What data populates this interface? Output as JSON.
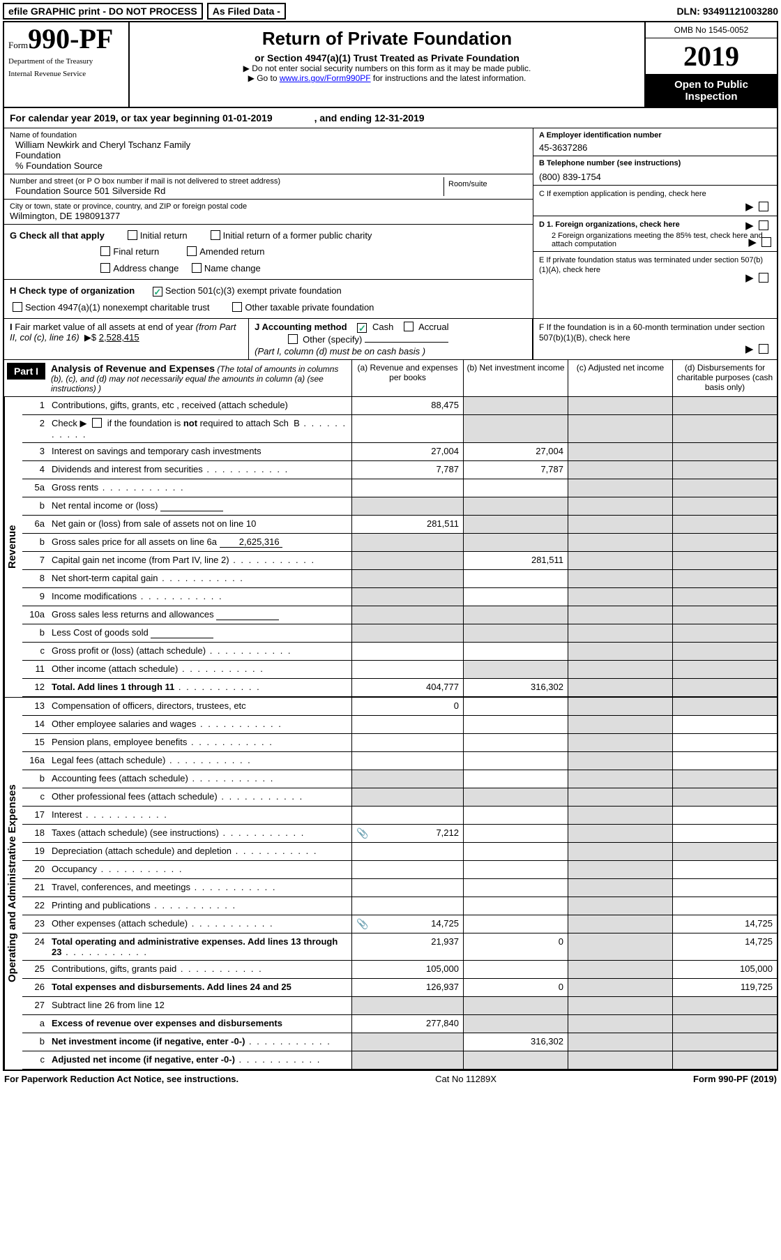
{
  "topbar": {
    "efile": "efile GRAPHIC print - DO NOT PROCESS",
    "asfiled": "As Filed Data -",
    "dln_label": "DLN:",
    "dln": "93491121003280"
  },
  "header": {
    "form_word": "Form",
    "form_no": "990-PF",
    "dept1": "Department of the Treasury",
    "dept2": "Internal Revenue Service",
    "title": "Return of Private Foundation",
    "subtitle": "or Section 4947(a)(1) Trust Treated as Private Foundation",
    "note1": "▶ Do not enter social security numbers on this form as it may be made public.",
    "note2_a": "▶ Go to ",
    "note2_link": "www.irs.gov/Form990PF",
    "note2_b": " for instructions and the latest information.",
    "omb": "OMB No 1545-0052",
    "year": "2019",
    "open": "Open to Public Inspection"
  },
  "calyear": {
    "a": "For calendar year 2019, or tax year beginning 01-01-2019",
    "b": ", and ending 12-31-2019"
  },
  "info": {
    "name_label": "Name of foundation",
    "name1": "William Newkirk and Cheryl Tschanz Family",
    "name2": "Foundation",
    "name3": "% Foundation Source",
    "addr_label": "Number and street (or P O  box number if mail is not delivered to street address)",
    "addr": "Foundation Source 501 Silverside Rd",
    "room_label": "Room/suite",
    "city_label": "City or town, state or province, country, and ZIP or foreign postal code",
    "city": "Wilmington, DE  198091377",
    "ein_label": "A Employer identification number",
    "ein": "45-3637286",
    "tel_label": "B Telephone number (see instructions)",
    "tel": "(800) 839-1754",
    "c_label": "C  If exemption application is pending, check here",
    "d1": "D 1. Foreign organizations, check here",
    "d2": "2  Foreign organizations meeting the 85% test, check here and attach computation",
    "e": "E  If private foundation status was terminated under section 507(b)(1)(A), check here",
    "f": "F  If the foundation is in a 60-month termination under section 507(b)(1)(B), check here"
  },
  "checks": {
    "g": "G Check all that apply",
    "g1": "Initial return",
    "g2": "Initial return of a former public charity",
    "g3": "Final return",
    "g4": "Amended return",
    "g5": "Address change",
    "g6": "Name change",
    "h": "H Check type of organization",
    "h1": "Section 501(c)(3) exempt private foundation",
    "h2": "Section 4947(a)(1) nonexempt charitable trust",
    "h3": "Other taxable private foundation",
    "i": "I Fair market value of all assets at end of year (from Part II, col  (c), line 16)  ▶$ ",
    "i_val": "2,528,415",
    "j": "J Accounting method",
    "j1": "Cash",
    "j2": "Accrual",
    "j3": "Other (specify)",
    "j_note": "(Part I, column (d) must be on cash basis )"
  },
  "part1": {
    "tag": "Part I",
    "title": "Analysis of Revenue and Expenses",
    "note": " (The total of amounts in columns (b), (c), and (d) may not necessarily equal the amounts in column (a) (see instructions) )",
    "col_a": "(a) Revenue and expenses per books",
    "col_b": "(b) Net investment income",
    "col_c": "(c) Adjusted net income",
    "col_d": "(d) Disbursements for charitable purposes (cash basis only)",
    "side_rev": "Revenue",
    "side_exp": "Operating and Administrative Expenses"
  },
  "rows": [
    {
      "n": "1",
      "d": "Contributions, gifts, grants, etc , received (attach schedule)",
      "a": "88,475"
    },
    {
      "n": "2",
      "d": "Check ▶ ☐ if the foundation is not required to attach Sch  B",
      "dots": true
    },
    {
      "n": "3",
      "d": "Interest on savings and temporary cash investments",
      "a": "27,004",
      "b": "27,004"
    },
    {
      "n": "4",
      "d": "Dividends and interest from securities",
      "a": "7,787",
      "b": "7,787",
      "dots": true
    },
    {
      "n": "5a",
      "d": "Gross rents",
      "dots": true
    },
    {
      "n": "b",
      "d": "Net rental income or (loss)",
      "sub": ""
    },
    {
      "n": "6a",
      "d": "Net gain or (loss) from sale of assets not on line 10",
      "a": "281,511"
    },
    {
      "n": "b",
      "d": "Gross sales price for all assets on line 6a",
      "sub": "2,625,316"
    },
    {
      "n": "7",
      "d": "Capital gain net income (from Part IV, line 2)",
      "b": "281,511",
      "dots": true
    },
    {
      "n": "8",
      "d": "Net short-term capital gain",
      "dots": true
    },
    {
      "n": "9",
      "d": "Income modifications",
      "dots": true
    },
    {
      "n": "10a",
      "d": "Gross sales less returns and allowances",
      "sub": ""
    },
    {
      "n": "b",
      "d": "Less  Cost of goods sold",
      "sub": "",
      "dots": true
    },
    {
      "n": "c",
      "d": "Gross profit or (loss) (attach schedule)",
      "dots": true
    },
    {
      "n": "11",
      "d": "Other income (attach schedule)",
      "dots": true
    },
    {
      "n": "12",
      "d": "Total. Add lines 1 through 11",
      "bold": true,
      "a": "404,777",
      "b": "316,302",
      "dots": true
    }
  ],
  "exp_rows": [
    {
      "n": "13",
      "d": "Compensation of officers, directors, trustees, etc",
      "a": "0"
    },
    {
      "n": "14",
      "d": "Other employee salaries and wages",
      "dots": true
    },
    {
      "n": "15",
      "d": "Pension plans, employee benefits",
      "dots": true
    },
    {
      "n": "16a",
      "d": "Legal fees (attach schedule)",
      "dots": true
    },
    {
      "n": "b",
      "d": "Accounting fees (attach schedule)",
      "dots": true
    },
    {
      "n": "c",
      "d": "Other professional fees (attach schedule)",
      "dots": true
    },
    {
      "n": "17",
      "d": "Interest",
      "dots": true
    },
    {
      "n": "18",
      "d": "Taxes (attach schedule) (see instructions)",
      "a": "7,212",
      "icon": true,
      "dots": true
    },
    {
      "n": "19",
      "d": "Depreciation (attach schedule) and depletion",
      "dots": true
    },
    {
      "n": "20",
      "d": "Occupancy",
      "dots": true
    },
    {
      "n": "21",
      "d": "Travel, conferences, and meetings",
      "dots": true
    },
    {
      "n": "22",
      "d": "Printing and publications",
      "dots": true
    },
    {
      "n": "23",
      "d": "Other expenses (attach schedule)",
      "a": "14,725",
      "dd": "14,725",
      "icon": true,
      "dots": true
    },
    {
      "n": "24",
      "d": "Total operating and administrative expenses. Add lines 13 through 23",
      "bold": true,
      "a": "21,937",
      "b": "0",
      "dd": "14,725",
      "dots": true
    },
    {
      "n": "25",
      "d": "Contributions, gifts, grants paid",
      "a": "105,000",
      "dd": "105,000",
      "dots": true
    },
    {
      "n": "26",
      "d": "Total expenses and disbursements. Add lines 24 and 25",
      "bold": true,
      "a": "126,937",
      "b": "0",
      "dd": "119,725"
    },
    {
      "n": "27",
      "d": "Subtract line 26 from line 12"
    },
    {
      "n": "a",
      "d": "Excess of revenue over expenses and disbursements",
      "bold": true,
      "a": "277,840"
    },
    {
      "n": "b",
      "d": "Net investment income (if negative, enter -0-)",
      "bold": true,
      "b": "316,302",
      "dots": true
    },
    {
      "n": "c",
      "d": "Adjusted net income (if negative, enter -0-)",
      "bold": true,
      "dots": true
    }
  ],
  "footer": {
    "left": "For Paperwork Reduction Act Notice, see instructions.",
    "mid": "Cat  No  11289X",
    "right": "Form 990-PF (2019)"
  },
  "grey_cols": {
    "rev": {
      "c_all": true,
      "d_all": true,
      "b_some": [
        "1",
        "2",
        "5a",
        "b",
        "6a",
        "10a",
        "c",
        "11"
      ]
    },
    "exp": {}
  }
}
